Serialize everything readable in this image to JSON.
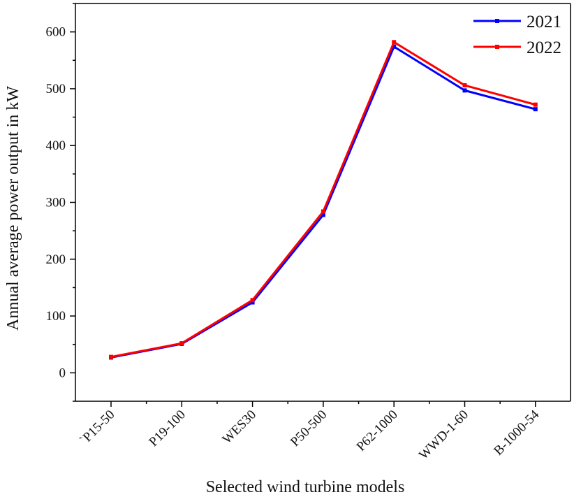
{
  "chart_data": {
    "type": "line",
    "categories": [
      "`P15-50",
      "P19-100",
      "WES30",
      "P50-500",
      "P62-1000",
      "WWD-1-60",
      "B-1000-54"
    ],
    "series": [
      {
        "name": "2021",
        "color": "#0000ff",
        "values": [
          27,
          51,
          124,
          278,
          574,
          497,
          464
        ]
      },
      {
        "name": "2022",
        "color": "#ff0000",
        "values": [
          28,
          52,
          128,
          284,
          582,
          506,
          472
        ]
      }
    ],
    "title": "",
    "xlabel": "Selected wind turbine models",
    "ylabel": "Annual average power output in kW",
    "ylim": [
      -50,
      650
    ],
    "yticks": [
      0,
      100,
      200,
      300,
      400,
      500,
      600
    ],
    "grid": false,
    "legend_position": "top-right"
  }
}
